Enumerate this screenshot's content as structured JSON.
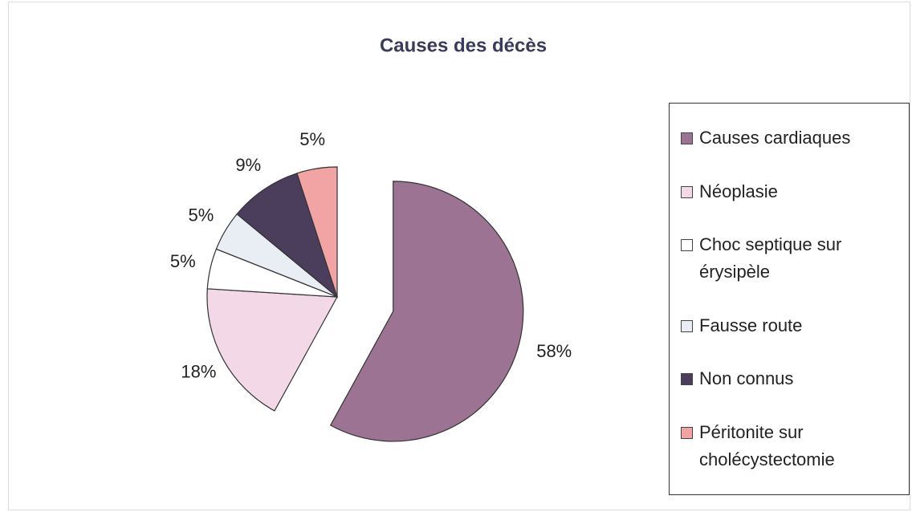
{
  "chart_data": {
    "type": "pie",
    "title": "Causes des décès",
    "categories": [
      "Causes cardiaques",
      "Néoplasie",
      "Choc septique sur érysipèle",
      "Fausse route",
      "Non connus",
      "Péritonite sur cholécystectomie"
    ],
    "values": [
      58,
      18,
      5,
      5,
      9,
      5
    ],
    "value_labels": [
      "58%",
      "18%",
      "5%",
      "5%",
      "9%",
      "5%"
    ],
    "colors": [
      "#9c7392",
      "#f3d8e8",
      "#ffffff",
      "#e9eef5",
      "#4b3d5c",
      "#f2a3a3"
    ],
    "legend": "right"
  }
}
